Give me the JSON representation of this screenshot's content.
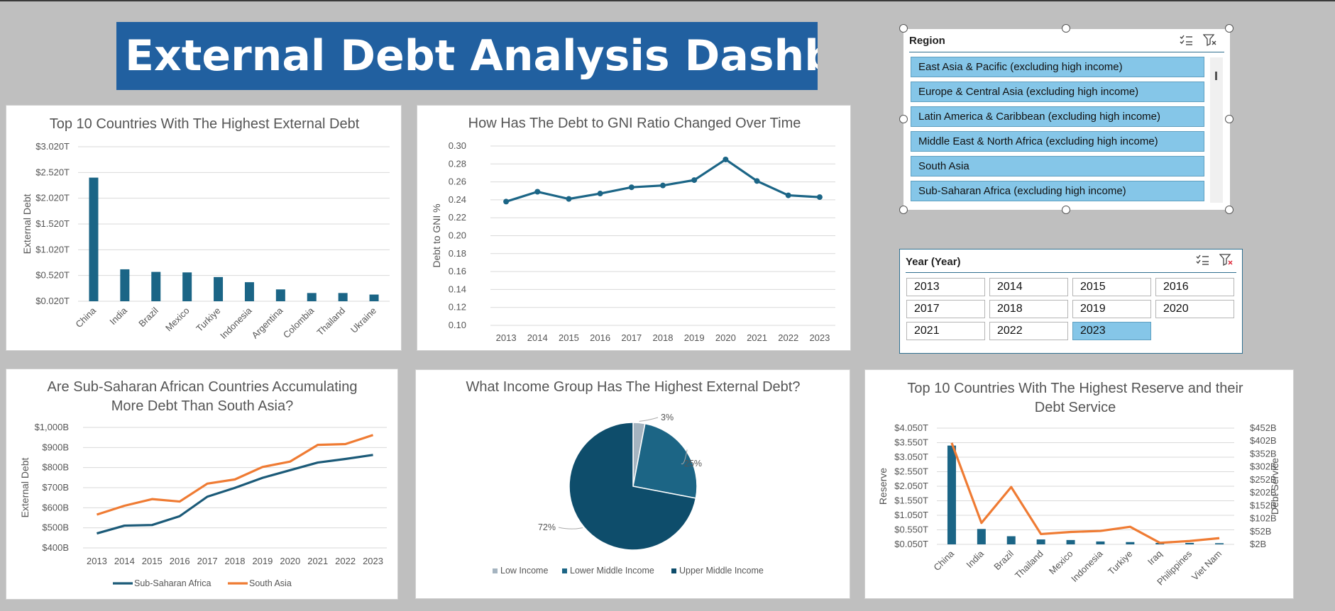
{
  "dashboard": {
    "title": "External Debt Analysis Dashboard"
  },
  "slicers": {
    "region": {
      "header": "Region",
      "items": [
        "East Asia & Pacific (excluding high income)",
        "Europe & Central Asia (excluding high income)",
        "Latin America & Caribbean (excluding high income)",
        "Middle East & North Africa (excluding high income)",
        "South Asia",
        "Sub-Saharan Africa (excluding high income)"
      ]
    },
    "year": {
      "header": "Year (Year)",
      "items": [
        "2013",
        "2014",
        "2015",
        "2016",
        "2017",
        "2018",
        "2019",
        "2020",
        "2021",
        "2022",
        "2023"
      ],
      "selected": [
        "2023"
      ]
    }
  },
  "chart_data": [
    {
      "type": "bar",
      "title": "Top 10 Countries With The Highest External Debt",
      "xlabel": "",
      "ylabel": "External Debt",
      "categories": [
        "China",
        "India",
        "Brazil",
        "Mexico",
        "Turkiye",
        "Indonesia",
        "Argentina",
        "Colombia",
        "Thailand",
        "Ukraine"
      ],
      "values": [
        2.42,
        0.64,
        0.59,
        0.58,
        0.49,
        0.39,
        0.25,
        0.18,
        0.18,
        0.15
      ],
      "yticks": [
        "$0.020T",
        "$0.520T",
        "$1.020T",
        "$1.520T",
        "$2.020T",
        "$2.520T",
        "$3.020T"
      ],
      "ylim": [
        0.02,
        3.02
      ],
      "color": "#1b6586"
    },
    {
      "type": "line",
      "title": "How Has The Debt to GNI Ratio Changed Over Time",
      "xlabel": "",
      "ylabel": "Debt to GNI %",
      "categories": [
        "2013",
        "2014",
        "2015",
        "2016",
        "2017",
        "2018",
        "2019",
        "2020",
        "2021",
        "2022",
        "2023"
      ],
      "values": [
        0.238,
        0.249,
        0.241,
        0.247,
        0.254,
        0.256,
        0.262,
        0.285,
        0.261,
        0.245,
        0.243
      ],
      "yticks": [
        "0.10",
        "0.12",
        "0.14",
        "0.16",
        "0.18",
        "0.20",
        "0.22",
        "0.24",
        "0.26",
        "0.28",
        "0.30"
      ],
      "ylim": [
        0.1,
        0.3
      ],
      "color": "#1b6586"
    },
    {
      "type": "line",
      "title": "Are Sub-Saharan African Countries Accumulating More Debt Than South Asia?",
      "title_lines": [
        "Are Sub-Saharan African Countries Accumulating",
        "More Debt Than South Asia?"
      ],
      "xlabel": "",
      "ylabel": "External Debt",
      "categories": [
        "2013",
        "2014",
        "2015",
        "2016",
        "2017",
        "2018",
        "2019",
        "2020",
        "2021",
        "2022",
        "2023"
      ],
      "yticks": [
        "$400B",
        "$500B",
        "$600B",
        "$700B",
        "$800B",
        "$900B",
        "$1,000B"
      ],
      "ylim": [
        400,
        1000
      ],
      "series": [
        {
          "name": "Sub-Saharan Africa",
          "color": "#1b5a78",
          "values": [
            472,
            511,
            514,
            558,
            655,
            699,
            749,
            787,
            825,
            843,
            863
          ]
        },
        {
          "name": "South Asia",
          "color": "#ef7b33",
          "values": [
            566,
            610,
            643,
            631,
            720,
            741,
            803,
            830,
            913,
            917,
            962
          ]
        }
      ]
    },
    {
      "type": "pie",
      "title": "What Income Group Has The Highest External Debt?",
      "slices": [
        {
          "name": "Low Income",
          "value": 3,
          "label": "3%",
          "color": "#a5b4c0"
        },
        {
          "name": "Lower Middle Income",
          "value": 25,
          "label": "25%",
          "color": "#1c6585"
        },
        {
          "name": "Upper Middle Income",
          "value": 72,
          "label": "72%",
          "color": "#0e4d6b"
        }
      ]
    },
    {
      "type": "bar",
      "title": "Top 10 Countries With The Highest Reserve and their Debt Service",
      "title_lines": [
        "Top 10 Countries With The Highest Reserve and their",
        "Debt Service"
      ],
      "ylabel": "Reserve",
      "y2label": "Debt Service",
      "categories": [
        "China",
        "India",
        "Brazil",
        "Thailand",
        "Mexico",
        "Indonesia",
        "Turkiye",
        "Iraq",
        "Philippines",
        "Viet Nam"
      ],
      "yticks": [
        "$0.050T",
        "$0.550T",
        "$1.050T",
        "$1.550T",
        "$2.050T",
        "$2.550T",
        "$3.050T",
        "$3.550T",
        "$4.050T"
      ],
      "ylim": [
        0.05,
        4.05
      ],
      "y2ticks": [
        "$2B",
        "$52B",
        "$102B",
        "$152B",
        "$202B",
        "$252B",
        "$302B",
        "$352B",
        "$402B",
        "$452B"
      ],
      "y2lim": [
        2,
        452
      ],
      "series": [
        {
          "name": "Reserve",
          "type": "bar",
          "axis": "left",
          "color": "#1b6586",
          "values": [
            3.45,
            0.58,
            0.33,
            0.22,
            0.2,
            0.15,
            0.13,
            0.1,
            0.1,
            0.09
          ]
        },
        {
          "name": "Debt Service",
          "type": "line",
          "axis": "right",
          "color": "#ef7b33",
          "values": [
            395,
            85,
            224,
            42,
            50,
            54,
            70,
            8,
            15,
            26
          ]
        }
      ]
    }
  ]
}
